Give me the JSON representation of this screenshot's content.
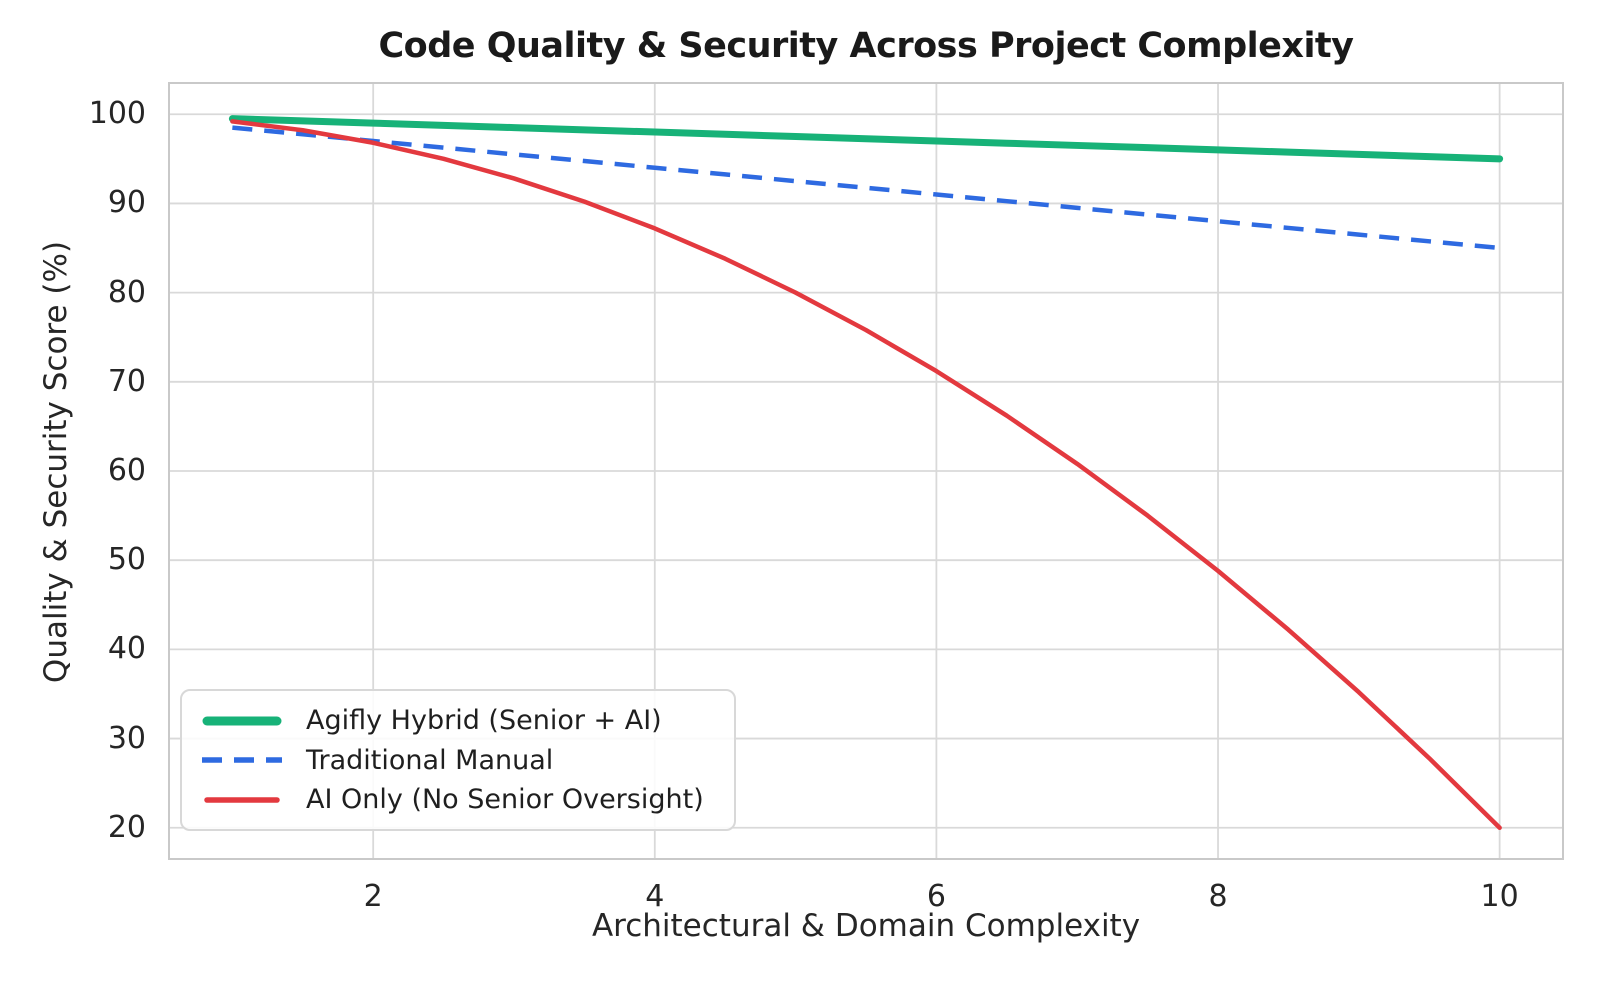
{
  "chart_data": {
    "type": "line",
    "title": "Code Quality & Security Across Project Complexity",
    "xlabel": "Architectural & Domain Complexity",
    "ylabel": "Quality & Security Score (%)",
    "xlim": [
      0.55,
      10.45
    ],
    "ylim": [
      16.5,
      103.5
    ],
    "x_ticks": [
      2,
      4,
      6,
      8,
      10
    ],
    "y_ticks": [
      20,
      30,
      40,
      50,
      60,
      70,
      80,
      90,
      100
    ],
    "grid": true,
    "legend_position": "lower-left",
    "x": [
      1,
      1.5,
      2,
      2.5,
      3,
      3.5,
      4,
      4.5,
      5,
      5.5,
      6,
      6.5,
      7,
      7.5,
      8,
      8.5,
      9,
      9.5,
      10
    ],
    "series": [
      {
        "name": "Agifly Hybrid (Senior + AI)",
        "slug": "agifly-hybrid",
        "color": "#17b278",
        "line_style": "solid",
        "line_width": 7,
        "values": [
          99.5,
          99.25,
          99.0,
          98.75,
          98.5,
          98.25,
          98.0,
          97.75,
          97.5,
          97.25,
          97.0,
          96.75,
          96.5,
          96.25,
          96.0,
          95.75,
          95.5,
          95.25,
          95.0
        ]
      },
      {
        "name": "Traditional Manual",
        "slug": "traditional-manual",
        "color": "#2e6ae1",
        "line_style": "dashed",
        "line_width": 4.5,
        "values": [
          98.5,
          97.75,
          97.0,
          96.25,
          95.5,
          94.75,
          94.0,
          93.25,
          92.5,
          91.75,
          91.0,
          90.25,
          89.5,
          88.75,
          88.0,
          87.25,
          86.5,
          85.75,
          85.0
        ]
      },
      {
        "name": "AI Only (No Senior Oversight)",
        "slug": "ai-only",
        "color": "#e3393f",
        "line_style": "solid",
        "line_width": 4.5,
        "values": [
          99.2,
          98.2,
          96.8,
          95.0,
          92.8,
          90.2,
          87.2,
          83.8,
          80.0,
          75.8,
          71.2,
          66.2,
          60.8,
          55.0,
          48.8,
          42.2,
          35.2,
          27.8,
          20.0
        ]
      }
    ],
    "styles": {
      "grid_color": "#d9d9d9",
      "spine_color": "#c9c9c9",
      "text_color": "#262626",
      "background": "#ffffff"
    }
  }
}
